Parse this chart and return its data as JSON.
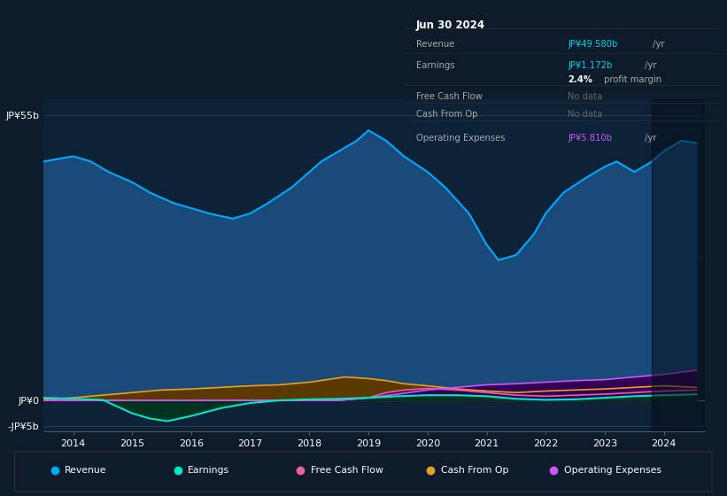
{
  "bg_color": "#0d1b2a",
  "plot_bg_color": "#0d2137",
  "title_box_date": "Jun 30 2024",
  "ylabel_top": "JP¥55b",
  "ylabel_zero": "JP¥0",
  "ylabel_neg": "-JP¥5b",
  "x_years": [
    2014,
    2015,
    2016,
    2017,
    2018,
    2019,
    2020,
    2021,
    2022,
    2023,
    2024
  ],
  "revenue_x": [
    2013.5,
    2014.0,
    2014.3,
    2014.6,
    2015.0,
    2015.3,
    2015.7,
    2016.0,
    2016.3,
    2016.7,
    2017.0,
    2017.3,
    2017.7,
    2018.0,
    2018.2,
    2018.5,
    2018.8,
    2019.0,
    2019.3,
    2019.6,
    2020.0,
    2020.3,
    2020.7,
    2021.0,
    2021.2,
    2021.5,
    2021.8,
    2022.0,
    2022.3,
    2022.7,
    2023.0,
    2023.2,
    2023.5,
    2023.8,
    2024.0,
    2024.3,
    2024.55
  ],
  "revenue_y": [
    46,
    47,
    46,
    44,
    42,
    40,
    38,
    37,
    36,
    35,
    36,
    38,
    41,
    44,
    46,
    48,
    50,
    52,
    50,
    47,
    44,
    41,
    36,
    30,
    27,
    28,
    32,
    36,
    40,
    43,
    45,
    46,
    44,
    46,
    48,
    50,
    49.58
  ],
  "revenue_color": "#00aaff",
  "revenue_fill": "#1a4a7a",
  "earnings_x": [
    2013.5,
    2014.0,
    2014.5,
    2015.0,
    2015.3,
    2015.6,
    2016.0,
    2016.5,
    2017.0,
    2017.5,
    2018.0,
    2018.5,
    2019.0,
    2019.5,
    2020.0,
    2020.5,
    2021.0,
    2021.5,
    2022.0,
    2022.5,
    2023.0,
    2023.5,
    2024.0,
    2024.55
  ],
  "earnings_y": [
    0.5,
    0.3,
    0.1,
    -2.5,
    -3.5,
    -4.0,
    -3.0,
    -1.5,
    -0.5,
    0.0,
    0.2,
    0.3,
    0.5,
    0.8,
    1.0,
    1.0,
    0.8,
    0.3,
    0.1,
    0.2,
    0.5,
    0.8,
    1.0,
    1.172
  ],
  "earnings_color": "#00e8c8",
  "earnings_fill": "#003322",
  "cash_from_op_x": [
    2013.5,
    2014.0,
    2014.5,
    2015.0,
    2015.5,
    2016.0,
    2016.5,
    2017.0,
    2017.5,
    2018.0,
    2018.3,
    2018.6,
    2019.0,
    2019.3,
    2019.6,
    2020.0,
    2020.5,
    2021.0,
    2021.5,
    2022.0,
    2022.5,
    2023.0,
    2023.5,
    2024.0,
    2024.55
  ],
  "cash_from_op_y": [
    0.2,
    0.5,
    1.0,
    1.5,
    2.0,
    2.2,
    2.5,
    2.8,
    3.0,
    3.5,
    4.0,
    4.5,
    4.2,
    3.8,
    3.2,
    2.8,
    2.2,
    1.8,
    1.5,
    1.8,
    2.0,
    2.2,
    2.5,
    2.8,
    2.5
  ],
  "cash_from_op_color": "#e8a020",
  "cash_from_op_fill": "#5a3a00",
  "free_cash_flow_x": [
    2013.5,
    2014.0,
    2014.5,
    2015.0,
    2015.5,
    2016.0,
    2016.5,
    2017.0,
    2017.5,
    2018.0,
    2018.5,
    2019.0,
    2019.3,
    2019.6,
    2020.0,
    2020.5,
    2021.0,
    2021.5,
    2022.0,
    2022.5,
    2023.0,
    2023.5,
    2024.0,
    2024.55
  ],
  "free_cash_flow_y": [
    0.0,
    0.0,
    0.0,
    0.0,
    0.0,
    0.0,
    0.0,
    0.0,
    0.0,
    0.0,
    0.0,
    0.5,
    1.5,
    2.0,
    2.3,
    2.0,
    1.5,
    1.0,
    0.8,
    1.0,
    1.2,
    1.5,
    1.8,
    2.0
  ],
  "free_cash_flow_color": "#e860a0",
  "free_cash_flow_fill": "#5a1040",
  "operating_expenses_x": [
    2013.5,
    2014.0,
    2014.5,
    2015.0,
    2015.5,
    2016.0,
    2016.5,
    2017.0,
    2017.5,
    2018.0,
    2018.5,
    2019.0,
    2019.5,
    2020.0,
    2020.5,
    2021.0,
    2021.5,
    2022.0,
    2022.5,
    2023.0,
    2023.5,
    2024.0,
    2024.55
  ],
  "operating_expenses_y": [
    0.0,
    0.0,
    0.0,
    0.0,
    0.0,
    0.0,
    0.0,
    0.0,
    0.0,
    0.0,
    0.0,
    0.5,
    1.2,
    2.0,
    2.5,
    3.0,
    3.2,
    3.5,
    3.8,
    4.0,
    4.5,
    5.0,
    5.81
  ],
  "operating_expenses_color": "#cc55ff",
  "operating_expenses_fill": "#330055",
  "ylim": [
    -6,
    58
  ],
  "xlim": [
    2013.5,
    2024.7
  ],
  "shade_start": 2023.8,
  "legend_items": [
    {
      "label": "Revenue",
      "color": "#00aaff"
    },
    {
      "label": "Earnings",
      "color": "#00e8c8"
    },
    {
      "label": "Free Cash Flow",
      "color": "#e860a0"
    },
    {
      "label": "Cash From Op",
      "color": "#e8a020"
    },
    {
      "label": "Operating Expenses",
      "color": "#cc55ff"
    }
  ],
  "info_box": {
    "date": "Jun 30 2024",
    "rows": [
      {
        "label": "Revenue",
        "value": "JP¥49.580b",
        "suffix": " /yr",
        "value_color": "#00d4e8",
        "no_data": false
      },
      {
        "label": "Earnings",
        "value": "JP¥1.172b",
        "suffix": " /yr",
        "value_color": "#00d4e8",
        "no_data": false
      },
      {
        "label": "",
        "value": "2.4%",
        "suffix": " profit margin",
        "value_color": "#ffffff",
        "bold": true,
        "no_data": false
      },
      {
        "label": "Free Cash Flow",
        "value": "No data",
        "suffix": "",
        "value_color": "#666666",
        "no_data": true
      },
      {
        "label": "Cash From Op",
        "value": "No data",
        "suffix": "",
        "value_color": "#666666",
        "no_data": true
      },
      {
        "label": "Operating Expenses",
        "value": "JP¥5.810b",
        "suffix": " /yr",
        "value_color": "#cc55ff",
        "no_data": false
      }
    ]
  }
}
